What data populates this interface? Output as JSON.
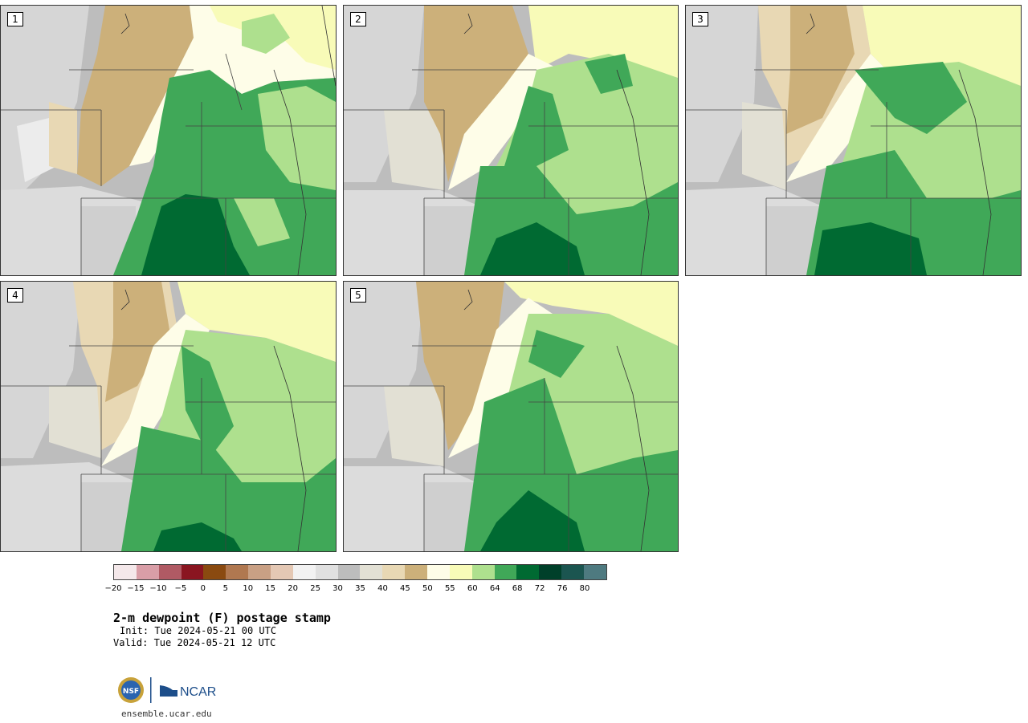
{
  "panels": [
    {
      "label": "1"
    },
    {
      "label": "2"
    },
    {
      "label": "3"
    },
    {
      "label": "4"
    },
    {
      "label": "5"
    }
  ],
  "colorbar": {
    "colors": [
      "#f4e8ea",
      "#d99ea7",
      "#b05a64",
      "#8a1520",
      "#8a4a10",
      "#b07850",
      "#c9a084",
      "#e4c8b4",
      "#f2f2f2",
      "#e0e0e0",
      "#bdbdbd",
      "#e2e0d4",
      "#e8d8b4",
      "#ccb07a",
      "#fefde8",
      "#f8fbb8",
      "#aee08e",
      "#40a858",
      "#006a32",
      "#00402a",
      "#1b5550",
      "#4e7a80"
    ],
    "ticks": [
      "−20",
      "−15",
      "−10",
      "−5",
      "0",
      "5",
      "10",
      "15",
      "20",
      "25",
      "30",
      "35",
      "40",
      "45",
      "50",
      "55",
      "60",
      "64",
      "68",
      "72",
      "76",
      "80"
    ]
  },
  "title": "2-m dewpoint (F) postage stamp",
  "init": "Init: Tue 2024-05-21 00 UTC",
  "valid": "Valid: Tue 2024-05-21 12 UTC",
  "logo": {
    "nsf_text": "NSF",
    "ncar_text": "NCAR"
  },
  "site": "ensemble.ucar.edu"
}
